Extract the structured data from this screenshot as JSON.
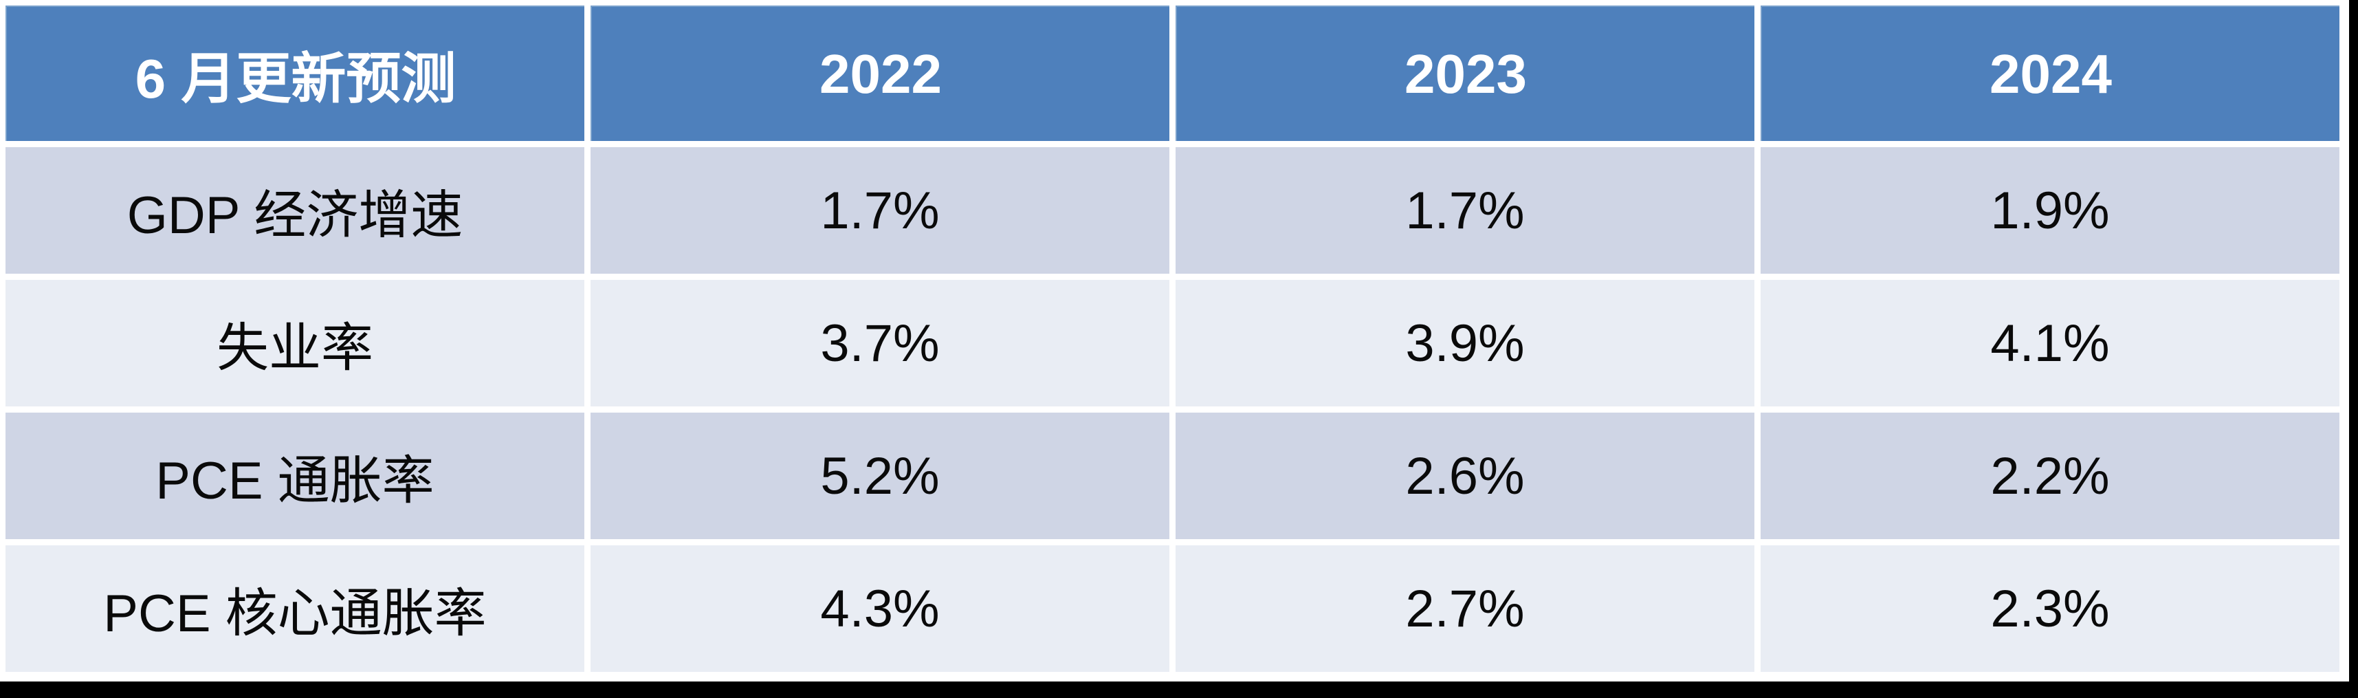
{
  "colors": {
    "header_bg": "#4E80BC",
    "header_text": "#FFFFFF",
    "band_dark": "#CFD5E5",
    "band_light": "#E9EDF4",
    "body_text": "#0A0A0A",
    "gap": "#FFFFFF",
    "frame": "#000000"
  },
  "table": {
    "header": {
      "title": "6 月更新预测",
      "years": [
        "2022",
        "2023",
        "2024"
      ]
    },
    "rows": [
      {
        "label": "GDP 经济增速",
        "values": [
          "1.7%",
          "1.7%",
          "1.9%"
        ]
      },
      {
        "label": "失业率",
        "values": [
          "3.7%",
          "3.9%",
          "4.1%"
        ]
      },
      {
        "label": "PCE 通胀率",
        "values": [
          "5.2%",
          "2.6%",
          "2.2%"
        ]
      },
      {
        "label": "PCE 核心通胀率",
        "values": [
          "4.3%",
          "2.7%",
          "2.3%"
        ]
      }
    ]
  },
  "chart_data": {
    "type": "table",
    "title": "6 月更新预测",
    "columns": [
      "6 月更新预测",
      "2022",
      "2023",
      "2024"
    ],
    "rows": [
      [
        "GDP 经济增速",
        "1.7%",
        "1.7%",
        "1.9%"
      ],
      [
        "失业率",
        "3.7%",
        "3.9%",
        "4.1%"
      ],
      [
        "PCE 通胀率",
        "5.2%",
        "2.6%",
        "2.2%"
      ],
      [
        "PCE 核心通胀率",
        "4.3%",
        "2.7%",
        "2.3%"
      ]
    ],
    "notes": "Banded-row forecast table: header row steel blue with white bold text; odd data rows light periwinkle (#CFD5E5); even data rows pale blue-gray (#E9EDF4); black frame strip along right and bottom edges."
  }
}
